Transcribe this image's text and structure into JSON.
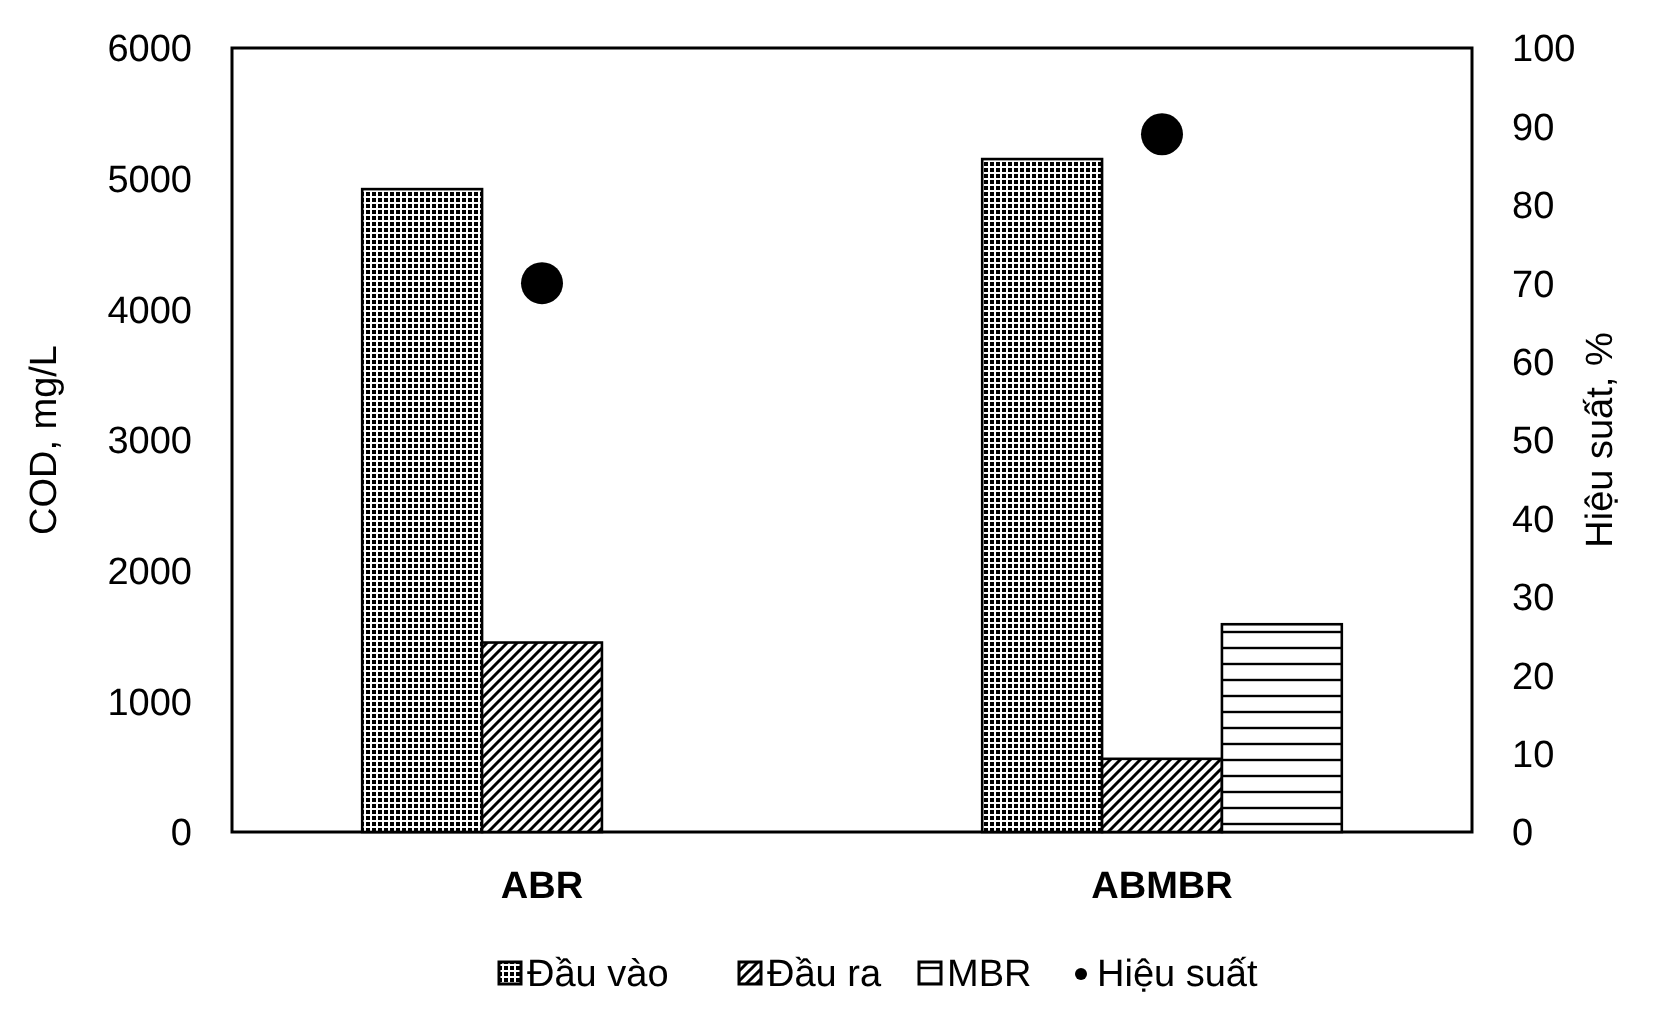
{
  "chart_data": {
    "type": "bar",
    "xlabel": null,
    "ylabel": "COD, mg/L",
    "y2label": "Hiệu suất, %",
    "categories": [
      "ABR",
      "ABMBR"
    ],
    "series": [
      {
        "name": "Đầu vào",
        "color": "#000000",
        "values": [
          4920,
          5150
        ]
      },
      {
        "name": "Đầu ra",
        "color": "#000000",
        "values": [
          1450,
          560
        ]
      },
      {
        "name": "MBR",
        "color": "#000000",
        "values": [
          null,
          1590
        ]
      },
      {
        "name": "Hiệu suất",
        "type": "scatter",
        "axis": "y2",
        "color": "#000000",
        "x": [
          "ABR",
          "ABMBR"
        ],
        "values": [
          70,
          89
        ]
      }
    ],
    "ylim": [
      0,
      6000
    ],
    "yticks": [
      0,
      1000,
      2000,
      3000,
      4000,
      5000,
      6000
    ],
    "y2lim": [
      0,
      100
    ],
    "y2ticks": [
      0,
      10,
      20,
      30,
      40,
      50,
      60,
      70,
      80,
      90,
      100
    ],
    "grid": false,
    "legend": "bottom",
    "marker": "circle"
  }
}
